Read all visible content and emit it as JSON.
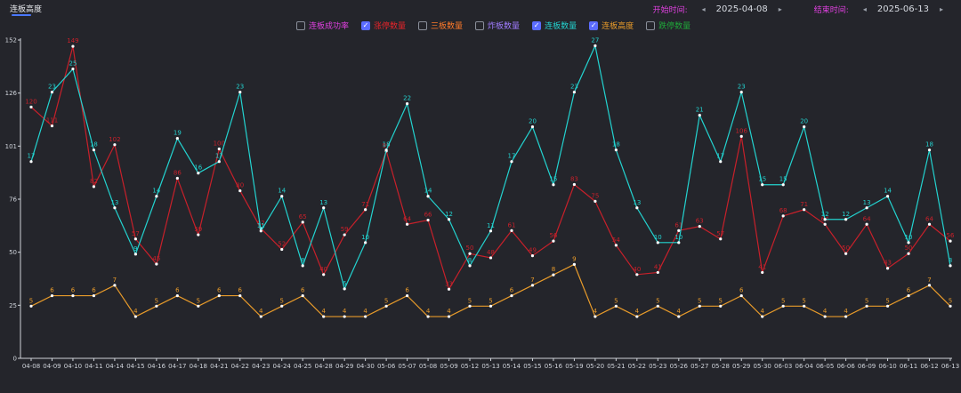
{
  "header": {
    "tab_label": "连板高度",
    "start_label": "开始时间:",
    "start_date": "2025-04-08",
    "end_label": "结束时间:",
    "end_date": "2025-06-13",
    "prev_icon": "◂",
    "next_icon": "▸"
  },
  "legend": [
    {
      "label": "连板成功率",
      "checked": false,
      "color": "#e040e0"
    },
    {
      "label": "涨停数量",
      "checked": true,
      "color": "#e8242a"
    },
    {
      "label": "三板数量",
      "checked": false,
      "color": "#ff7a2a"
    },
    {
      "label": "炸板数量",
      "checked": false,
      "color": "#a07cff"
    },
    {
      "label": "连板数量",
      "checked": true,
      "color": "#23d3d0"
    },
    {
      "label": "连板高度",
      "checked": true,
      "color": "#e89b2a"
    },
    {
      "label": "跌停数量",
      "checked": false,
      "color": "#1fa83a"
    }
  ],
  "chart_data": {
    "type": "line",
    "categories": [
      "04-08",
      "04-09",
      "04-10",
      "04-11",
      "04-14",
      "04-15",
      "04-16",
      "04-17",
      "04-18",
      "04-21",
      "04-22",
      "04-23",
      "04-24",
      "04-25",
      "04-28",
      "04-29",
      "04-30",
      "05-06",
      "05-07",
      "05-08",
      "05-09",
      "05-12",
      "05-13",
      "05-14",
      "05-15",
      "05-16",
      "05-19",
      "05-20",
      "05-21",
      "05-22",
      "05-23",
      "05-26",
      "05-27",
      "05-28",
      "05-29",
      "05-30",
      "06-03",
      "06-04",
      "06-05",
      "06-06",
      "06-09",
      "06-10",
      "06-11",
      "06-12",
      "06-13"
    ],
    "y_ticks": [
      "0",
      "25",
      "50",
      "76",
      "101",
      "126",
      "152"
    ],
    "ylim": [
      0,
      152
    ],
    "series": [
      {
        "name": "涨停数量",
        "color": "#c8202a",
        "values": [
          120,
          111,
          149,
          82,
          102,
          57,
          45,
          86,
          59,
          100,
          80,
          62,
          52,
          65,
          40,
          59,
          71,
          99,
          64,
          66,
          33,
          50,
          48,
          61,
          49,
          56,
          83,
          75,
          54,
          40,
          41,
          61,
          63,
          57,
          106,
          41,
          68,
          71,
          64,
          50,
          64,
          43,
          50,
          64,
          56
        ]
      },
      {
        "name": "连板数量",
        "color": "#23d3d0",
        "values": [
          17,
          23,
          25,
          18,
          13,
          9,
          14,
          19,
          16,
          17,
          23,
          11,
          14,
          8,
          13,
          6,
          10,
          18,
          22,
          14,
          12,
          8,
          11,
          17,
          20,
          15,
          23,
          27,
          18,
          13,
          10,
          10,
          21,
          17,
          23,
          15,
          15,
          20,
          12,
          12,
          13,
          14,
          10,
          18,
          8
        ]
      },
      {
        "name": "连板高度",
        "color": "#e89b2a",
        "values": [
          5,
          6,
          6,
          6,
          7,
          4,
          5,
          6,
          5,
          6,
          6,
          4,
          5,
          6,
          4,
          4,
          4,
          5,
          6,
          4,
          4,
          5,
          5,
          6,
          7,
          8,
          9,
          4,
          5,
          4,
          5,
          4,
          5,
          5,
          6,
          4,
          5,
          5,
          4,
          4,
          5,
          5,
          6,
          7,
          5
        ]
      }
    ]
  }
}
